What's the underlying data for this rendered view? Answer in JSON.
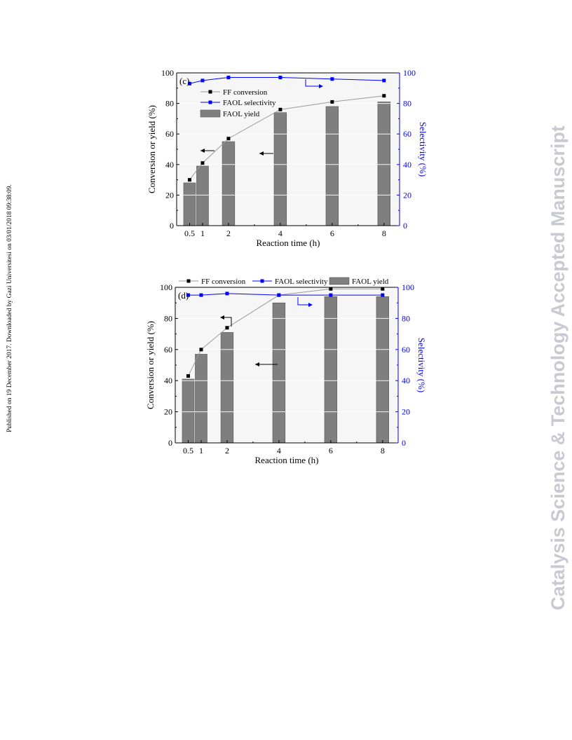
{
  "side_note": {
    "published": "Published on 19 December 2017. Downloaded by Gazi Universitesi on 03/01/2018 09:38:09.",
    "watermark": "Catalysis Science & Technology Accepted Manuscript"
  },
  "colors": {
    "bar": "#7f7f7f",
    "conversion": "#000000",
    "selectivity": "#0000ff",
    "watermark": "#c9c9d4"
  },
  "chart_data": [
    {
      "type": "bar",
      "panel_label": "(c)",
      "xlabel": "Reaction time (h)",
      "ylabel": "Conversion or yield (%)",
      "y2label": "Selectivity (%)",
      "xlim": [
        0,
        8.6
      ],
      "ylim": [
        0,
        100
      ],
      "y2lim": [
        0,
        100
      ],
      "xticks": [
        0.5,
        1,
        2,
        4,
        6,
        8
      ],
      "yticks": [
        0,
        20,
        40,
        60,
        80,
        100
      ],
      "legend_position": "top-left",
      "series": [
        {
          "name": "FF conversion",
          "kind": "line",
          "x": [
            0.5,
            1,
            2,
            4,
            6,
            8
          ],
          "values": [
            30,
            41,
            57,
            76,
            81,
            85
          ]
        },
        {
          "name": "FAOL selectivity",
          "kind": "line",
          "axis": "right",
          "x": [
            0.5,
            1,
            2,
            4,
            6,
            8
          ],
          "values": [
            93,
            95,
            97,
            97,
            96,
            95
          ]
        },
        {
          "name": "FAOL yield",
          "kind": "bar",
          "x": [
            0.5,
            1,
            2,
            4,
            6,
            8
          ],
          "values": [
            28,
            39,
            55,
            74,
            78,
            81
          ]
        }
      ]
    },
    {
      "type": "bar",
      "panel_label": "(d)",
      "xlabel": "Reaction time (h)",
      "ylabel": "Conversion or yield (%)",
      "y2label": "Selectivity (%)",
      "xlim": [
        0,
        8.6
      ],
      "ylim": [
        0,
        100
      ],
      "y2lim": [
        0,
        100
      ],
      "xticks": [
        0.5,
        1,
        2,
        4,
        6,
        8
      ],
      "yticks": [
        0,
        20,
        40,
        60,
        80,
        100
      ],
      "legend_position": "top",
      "series": [
        {
          "name": "FF conversion",
          "kind": "line",
          "x": [
            0.5,
            1,
            2,
            4,
            6,
            8
          ],
          "values": [
            43,
            60,
            74,
            95,
            99,
            99
          ]
        },
        {
          "name": "FAOL selectivity",
          "kind": "line",
          "axis": "right",
          "x": [
            0.5,
            1,
            2,
            4,
            6,
            8
          ],
          "values": [
            95,
            95,
            96,
            95,
            95,
            95
          ]
        },
        {
          "name": "FAOL yield",
          "kind": "bar",
          "x": [
            0.5,
            1,
            2,
            4,
            6,
            8
          ],
          "values": [
            41,
            57,
            71,
            90,
            94,
            94
          ]
        }
      ]
    }
  ]
}
